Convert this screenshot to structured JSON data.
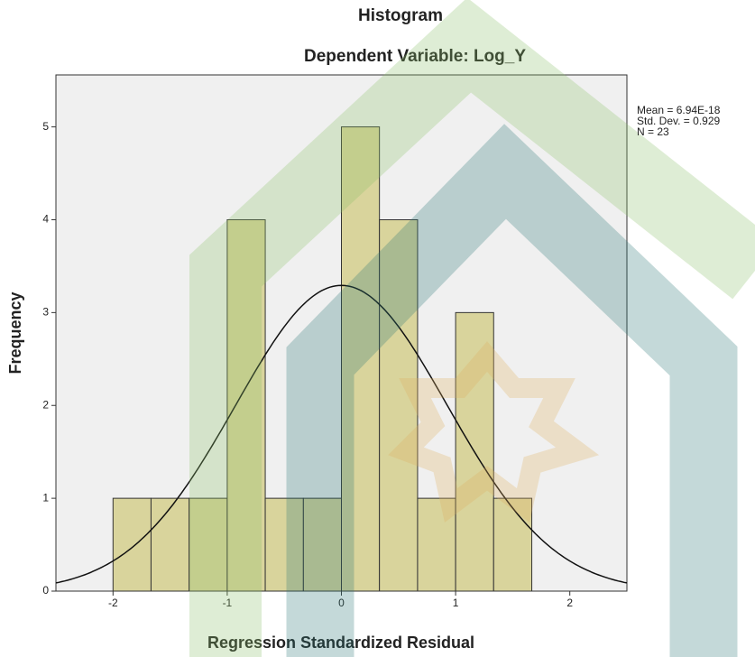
{
  "chart_data": {
    "type": "histogram",
    "title": "Histogram",
    "subtitle": "Dependent Variable: Log_Y",
    "x_label": "Regression Standardized Residual",
    "y_label": "Frequency",
    "bins": [
      -2,
      -1.667,
      -1.333,
      -1,
      -0.667,
      -0.333,
      0,
      0.333,
      0.667,
      1,
      1.333,
      1.667
    ],
    "counts": [
      1,
      1,
      1,
      4,
      1,
      1,
      5,
      4,
      1,
      3,
      1
    ],
    "color": "#d9d49c",
    "xlim": [
      -2.5,
      2.5
    ],
    "xticks": [
      -2,
      -1,
      0,
      1,
      2
    ],
    "ylim": [
      0,
      5.56
    ],
    "yticks": [
      0,
      1,
      2,
      3,
      4,
      5
    ],
    "stats": [
      {
        "value": 6.94e-18,
        "label": "Mean = 6.94E-18"
      },
      {
        "value": 0.929,
        "label": "Std. Dev. = 0.929"
      },
      {
        "value": 23,
        "label": "N = 23"
      }
    ]
  }
}
